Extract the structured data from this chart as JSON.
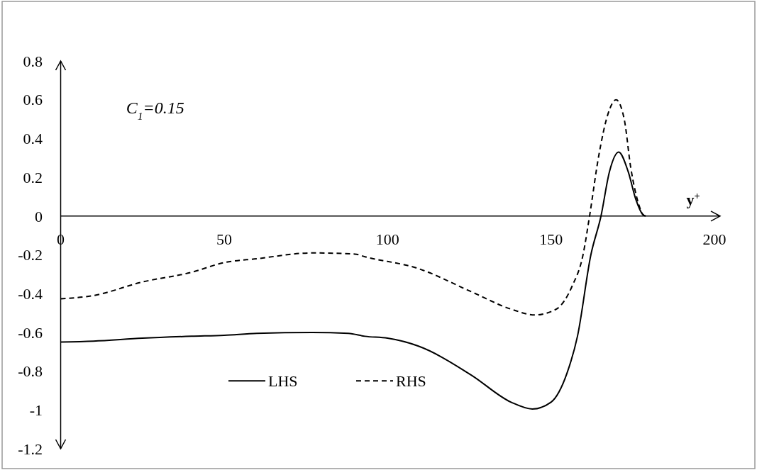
{
  "chart_data": {
    "type": "line",
    "xlabel": "y$^{+}$",
    "annotations": [
      "C$_{1}$=0.15"
    ],
    "xlim": [
      0,
      200
    ],
    "xticks": [
      0,
      50,
      100,
      150,
      200
    ],
    "ylim": [
      -1.2,
      0.8
    ],
    "yticks": [
      -1.2,
      -1,
      -0.8,
      -0.6,
      -0.4,
      -0.2,
      0,
      0.2,
      0.4,
      0.6,
      0.8
    ],
    "grid": false,
    "legend": "bottom",
    "marker": "none",
    "series": [
      {
        "name": "LHS",
        "color": "#000000",
        "line_style": "solid",
        "x": [
          0,
          10,
          25,
          40,
          50,
          60,
          77,
          88,
          93.1,
          100,
          109.3,
          125.6,
          137.8,
          144.3,
          150,
          154.9,
          158.1,
          162.2,
          165.3,
          167.9,
          170.7,
          173.6,
          176,
          178,
          179
        ],
        "values": [
          -0.65,
          -0.645,
          -0.63,
          -0.62,
          -0.615,
          -0.605,
          -0.6,
          -0.605,
          -0.62,
          -0.63,
          -0.67,
          -0.82,
          -0.96,
          -0.995,
          -0.96,
          -0.81,
          -0.62,
          -0.2,
          0,
          0.23,
          0.33,
          0.23,
          0.084,
          0.01,
          0
        ]
      },
      {
        "name": "RHS",
        "color": "#000000",
        "line_style": "dashed",
        "x": [
          0,
          10,
          25,
          40,
          50,
          60,
          77,
          90,
          93.1,
          109.3,
          125.6,
          137.8,
          145.1,
          151.6,
          156.5,
          159.8,
          161.8,
          164.6,
          167.5,
          169.9,
          172.4,
          174.4,
          176.9,
          178,
          179
        ],
        "values": [
          -0.427,
          -0.41,
          -0.34,
          -0.29,
          -0.24,
          -0.22,
          -0.19,
          -0.196,
          -0.21,
          -0.27,
          -0.39,
          -0.48,
          -0.51,
          -0.48,
          -0.36,
          -0.2,
          0,
          0.31,
          0.53,
          0.6,
          0.5,
          0.25,
          0.057,
          0.01,
          0
        ]
      }
    ]
  }
}
